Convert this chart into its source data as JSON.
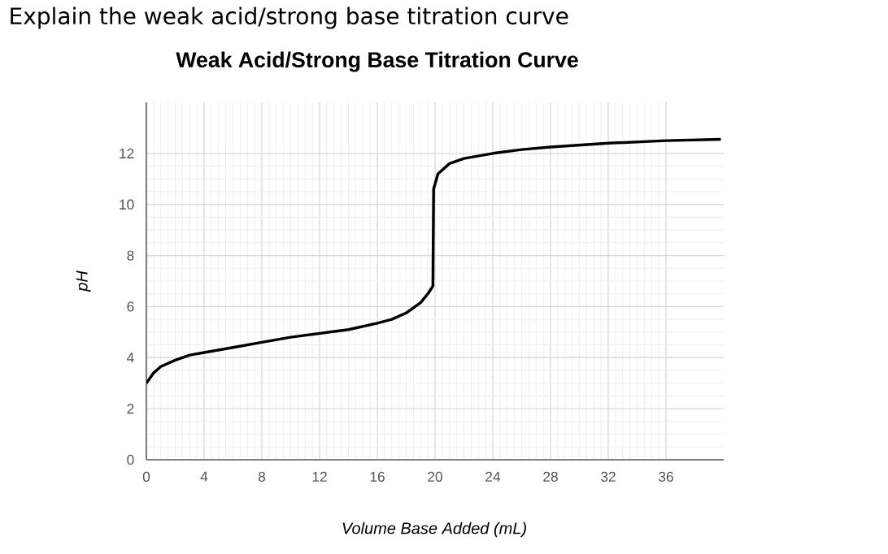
{
  "chart_data": {
    "type": "line",
    "title": "Weak Acid/Strong Base Titration Curve",
    "xlabel": "Volume Base Added (mL)",
    "ylabel": "pH",
    "annotations": [
      "Explain the weak acid/strong base titration curve"
    ],
    "x": [
      0,
      0.5,
      1,
      2,
      3,
      4,
      6,
      8,
      10,
      12,
      14,
      16,
      17,
      18,
      19,
      19.5,
      19.85,
      19.9,
      20.2,
      21,
      22,
      24,
      26,
      28,
      32,
      36,
      39.8
    ],
    "series": [
      {
        "color": "#000000",
        "values": [
          3.0,
          3.4,
          3.65,
          3.9,
          4.1,
          4.2,
          4.4,
          4.6,
          4.8,
          4.95,
          5.1,
          5.35,
          5.5,
          5.75,
          6.15,
          6.5,
          6.8,
          10.6,
          11.2,
          11.6,
          11.8,
          12.0,
          12.15,
          12.25,
          12.4,
          12.5,
          12.55
        ]
      }
    ],
    "xlim": [
      0,
      40
    ],
    "ylim": [
      0,
      14
    ],
    "xticks": [
      0,
      4,
      8,
      12,
      16,
      20,
      24,
      28,
      32,
      36
    ],
    "yticks": [
      0,
      2,
      4,
      6,
      8,
      10,
      12
    ],
    "grid": true,
    "marker": "none",
    "line_style": "solid"
  }
}
